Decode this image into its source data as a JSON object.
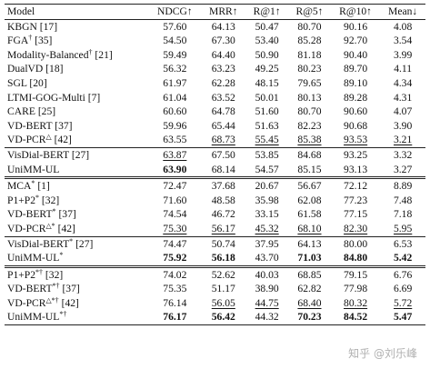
{
  "headers": [
    "Model",
    "NDCG↑",
    "MRR↑",
    "R@1↑",
    "R@5↑",
    "R@10↑",
    "Mean↓"
  ],
  "groups": [
    {
      "style": "first",
      "rows": [
        {
          "name": "KBGN [17]",
          "sup": "",
          "values": [
            "57.60",
            "64.13",
            "50.47",
            "80.70",
            "90.16",
            "4.08"
          ],
          "bold": [],
          "underline": []
        },
        {
          "name": "FGA",
          "sup": "†",
          "suffix": " [35]",
          "values": [
            "54.50",
            "67.30",
            "53.40",
            "85.28",
            "92.70",
            "3.54"
          ],
          "bold": [],
          "underline": []
        },
        {
          "name": "Modality-Balanced",
          "sup": "†",
          "suffix": " [21]",
          "values": [
            "59.49",
            "64.40",
            "50.90",
            "81.18",
            "90.40",
            "3.99"
          ],
          "bold": [],
          "underline": []
        },
        {
          "name": "DualVD [18]",
          "sup": "",
          "values": [
            "56.32",
            "63.23",
            "49.25",
            "80.23",
            "89.70",
            "4.11"
          ],
          "bold": [],
          "underline": []
        },
        {
          "name": "SGL [20]",
          "sup": "",
          "values": [
            "61.97",
            "62.28",
            "48.15",
            "79.65",
            "89.10",
            "4.34"
          ],
          "bold": [],
          "underline": []
        },
        {
          "name": "LTMI-GOG-Multi [7]",
          "sup": "",
          "values": [
            "61.04",
            "63.52",
            "50.01",
            "80.13",
            "89.28",
            "4.31"
          ],
          "bold": [],
          "underline": []
        },
        {
          "name": "CARE [25]",
          "sup": "",
          "values": [
            "60.60",
            "64.78",
            "51.60",
            "80.70",
            "90.60",
            "4.07"
          ],
          "bold": [],
          "underline": []
        },
        {
          "name": "VD-BERT [37]",
          "sup": "",
          "values": [
            "59.96",
            "65.44",
            "51.63",
            "82.23",
            "90.68",
            "3.90"
          ],
          "bold": [],
          "underline": []
        },
        {
          "name": "VD-PCR",
          "sup": "△",
          "suffix": " [42]",
          "values": [
            "63.55",
            "68.73",
            "55.45",
            "85.38",
            "93.53",
            "3.21"
          ],
          "bold": [],
          "underline": [
            1,
            2,
            3,
            4,
            5
          ]
        }
      ]
    },
    {
      "style": "group",
      "rows": [
        {
          "name": "VisDial-BERT [27]",
          "sup": "",
          "values": [
            "63.87",
            "67.50",
            "53.85",
            "84.68",
            "93.25",
            "3.32"
          ],
          "bold": [],
          "underline": [
            0
          ]
        },
        {
          "name": "UniMM-UL",
          "sup": "",
          "values": [
            "63.90",
            "68.14",
            "54.57",
            "85.15",
            "93.13",
            "3.27"
          ],
          "bold": [
            0
          ],
          "underline": []
        }
      ]
    },
    {
      "style": "double",
      "rows": [
        {
          "name": "MCA",
          "sup": "*",
          "suffix": " [1]",
          "values": [
            "72.47",
            "37.68",
            "20.67",
            "56.67",
            "72.12",
            "8.89"
          ],
          "bold": [],
          "underline": []
        },
        {
          "name": "P1+P2",
          "sup": "*",
          "suffix": " [32]",
          "values": [
            "71.60",
            "48.58",
            "35.98",
            "62.08",
            "77.23",
            "7.48"
          ],
          "bold": [],
          "underline": []
        },
        {
          "name": "VD-BERT",
          "sup": "*",
          "suffix": " [37]",
          "values": [
            "74.54",
            "46.72",
            "33.15",
            "61.58",
            "77.15",
            "7.18"
          ],
          "bold": [],
          "underline": []
        },
        {
          "name": "VD-PCR",
          "sup": "△*",
          "suffix": " [42]",
          "values": [
            "75.30",
            "56.17",
            "45.32",
            "68.10",
            "82.30",
            "5.95"
          ],
          "bold": [],
          "underline": [
            0,
            1,
            2,
            3,
            4,
            5
          ]
        }
      ]
    },
    {
      "style": "group",
      "rows": [
        {
          "name": "VisDial-BERT",
          "sup": "*",
          "suffix": " [27]",
          "values": [
            "74.47",
            "50.74",
            "37.95",
            "64.13",
            "80.00",
            "6.53"
          ],
          "bold": [],
          "underline": []
        },
        {
          "name": "UniMM-UL",
          "sup": "*",
          "values": [
            "75.92",
            "56.18",
            "43.70",
            "71.03",
            "84.80",
            "5.42"
          ],
          "bold": [
            0,
            1,
            3,
            4,
            5
          ],
          "underline": []
        }
      ]
    },
    {
      "style": "double",
      "rows": [
        {
          "name": "P1+P2",
          "sup": "*†",
          "suffix": " [32]",
          "values": [
            "74.02",
            "52.62",
            "40.03",
            "68.85",
            "79.15",
            "6.76"
          ],
          "bold": [],
          "underline": []
        },
        {
          "name": "VD-BERT",
          "sup": "*†",
          "suffix": " [37]",
          "values": [
            "75.35",
            "51.17",
            "38.90",
            "62.82",
            "77.98",
            "6.69"
          ],
          "bold": [],
          "underline": []
        },
        {
          "name": "VD-PCR",
          "sup": "△*†",
          "suffix": " [42]",
          "values": [
            "76.14",
            "56.05",
            "44.75",
            "68.40",
            "80.32",
            "5.72"
          ],
          "bold": [],
          "underline": [
            1,
            2,
            3,
            4,
            5
          ]
        }
      ]
    },
    {
      "style": "last",
      "rows": [
        {
          "name": "UniMM-UL",
          "sup": "*†",
          "values": [
            "76.17",
            "56.42",
            "44.32",
            "70.23",
            "84.52",
            "5.47"
          ],
          "bold": [
            0,
            1,
            3,
            4,
            5
          ],
          "underline": []
        }
      ]
    }
  ],
  "watermark": "知乎 @刘乐峰"
}
